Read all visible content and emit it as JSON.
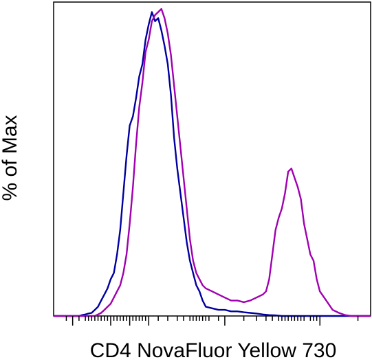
{
  "chart_data": {
    "type": "line",
    "title": "",
    "xlabel": "CD4 NovaFluor Yellow 730",
    "ylabel": "% of Max",
    "x_scale": "biexponential (unlabeled ticks)",
    "xlim": [
      0,
      100
    ],
    "ylim": [
      0,
      100
    ],
    "grid": false,
    "legend": "none",
    "series": [
      {
        "color": "#0000a0",
        "x": [
          0,
          8,
          9,
          10,
          11,
          12,
          12.5,
          13,
          14,
          15,
          16,
          17,
          18,
          19,
          20,
          21,
          22,
          23,
          24,
          25,
          26,
          27,
          28,
          29,
          30,
          31,
          32,
          33,
          34,
          35,
          36,
          37,
          38,
          39,
          40,
          41,
          42,
          43,
          44,
          45,
          46,
          47,
          48,
          50,
          52,
          54,
          56,
          58,
          60,
          62,
          64,
          66,
          68,
          70,
          72,
          100
        ],
        "y": [
          0,
          0,
          0.3,
          0.5,
          0.8,
          1,
          1.5,
          2,
          3,
          5,
          7,
          9,
          12,
          14,
          20,
          28,
          40,
          52,
          62,
          65,
          71,
          78,
          82,
          90,
          95,
          99,
          96,
          97,
          93,
          88,
          82,
          72,
          58,
          48,
          40,
          32,
          24,
          18,
          14,
          10,
          8,
          5,
          3,
          2.5,
          2,
          2,
          1.5,
          1.5,
          1.2,
          1,
          0.8,
          0.5,
          0.3,
          0.2,
          0,
          0
        ]
      },
      {
        "color": "#a000b0",
        "x": [
          0,
          13,
          14,
          15,
          16,
          17,
          18,
          19,
          20,
          21,
          22,
          23,
          24,
          25,
          26,
          27,
          28,
          29,
          30,
          31,
          32,
          33,
          34,
          35,
          36,
          37,
          38,
          39,
          40,
          41,
          42,
          43,
          44,
          45,
          46,
          47,
          48,
          50,
          52,
          54,
          56,
          58,
          60,
          62,
          64,
          66,
          67,
          68,
          69,
          70,
          71,
          72,
          73,
          74,
          75,
          76,
          77,
          78,
          79,
          80,
          81,
          82,
          83,
          84,
          86,
          88,
          90,
          92,
          94,
          100
        ],
        "y": [
          0,
          0,
          0.5,
          1,
          2,
          3,
          4,
          6,
          8,
          10,
          14,
          20,
          30,
          42,
          56,
          68,
          76,
          86,
          90,
          96,
          98,
          99,
          100,
          97,
          92,
          85,
          75,
          65,
          55,
          45,
          35,
          25,
          18,
          14,
          12,
          10,
          9,
          8,
          7,
          6,
          5,
          5,
          4.5,
          5,
          6,
          7,
          8,
          12,
          20,
          28,
          32,
          35,
          40,
          47,
          48,
          45,
          42,
          38,
          30,
          25,
          20,
          18,
          12,
          8,
          5,
          2,
          1,
          0.3,
          0,
          0
        ]
      }
    ]
  }
}
